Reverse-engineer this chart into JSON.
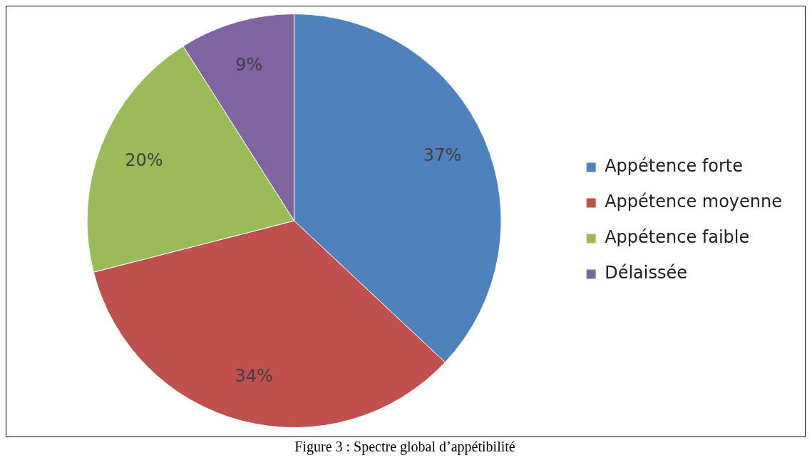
{
  "chart_data": {
    "type": "pie",
    "categories": [
      "Appétence forte",
      "Appétence moyenne",
      "Appétence faible",
      "Délaissée"
    ],
    "values": [
      37,
      34,
      20,
      9
    ],
    "colors": [
      "#4f81bd",
      "#c0504d",
      "#9bbb59",
      "#8064a2"
    ],
    "value_labels": [
      "37%",
      "34%",
      "20%",
      "9%"
    ],
    "legend": "right",
    "annotations": [
      "Figure 3 : Spectre global d’appétibilité"
    ]
  }
}
